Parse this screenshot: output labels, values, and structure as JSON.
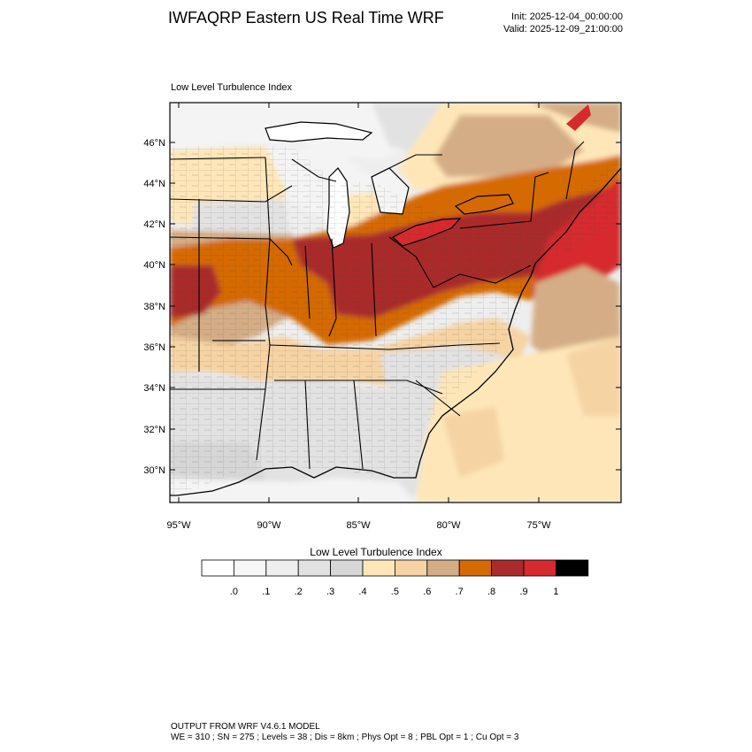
{
  "header": {
    "title": "IWFAQRP Eastern US Real Time WRF",
    "init": "Init: 2025-12-04_00:00:00",
    "valid": "Valid: 2025-12-09_21:00:00"
  },
  "panel": {
    "title": "Low Level Turbulence Index"
  },
  "axes": {
    "lat_labels": [
      "46°N",
      "44°N",
      "42°N",
      "40°N",
      "38°N",
      "36°N",
      "34°N",
      "32°N",
      "30°N"
    ],
    "lon_labels": [
      "95°W",
      "90°W",
      "85°W",
      "80°W",
      "75°W"
    ]
  },
  "legend": {
    "title": "Low Level Turbulence Index",
    "tick_labels": [
      ".0",
      ".1",
      ".2",
      ".3",
      ".4",
      ".5",
      ".6",
      ".7",
      ".8",
      ".9",
      "1"
    ],
    "colors": [
      "#ffffff",
      "#f6f6f6",
      "#eeeeee",
      "#e2e2e2",
      "#d6d6d6",
      "#fee6b8",
      "#f6d3a3",
      "#d4ad86",
      "#d56a05",
      "#aa2c2a",
      "#d62a2e",
      "#000000"
    ]
  },
  "footer": {
    "line1": "OUTPUT FROM WRF V4.6.1 MODEL",
    "line2": "WE = 310 ; SN = 275 ; Levels = 38 ; Dis = 8km ; Phys Opt = 8 ; PBL Opt = 1 ; Cu Opt = 3"
  }
}
